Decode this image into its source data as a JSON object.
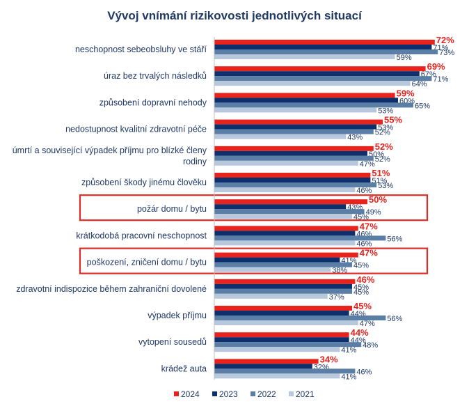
{
  "chart_data": {
    "type": "bar",
    "orientation": "horizontal",
    "title": "Vývoj vnímání rizikovosti jednotlivých situací",
    "xlim": [
      0,
      100
    ],
    "value_suffix": "%",
    "grid": false,
    "legend_position": "bottom",
    "categories": [
      [
        "neschopnost sebeobsluhy ve stáří"
      ],
      [
        "úraz bez trvalých následků"
      ],
      [
        "způsobení dopravní nehody"
      ],
      [
        "nedostupnost kvalitní zdravotní péče"
      ],
      [
        "úmrtí a související výpadek příjmu pro blízké členy",
        "rodiny"
      ],
      [
        "způsobení škody jinému člověku"
      ],
      [
        "požár domu / bytu"
      ],
      [
        "krátkodobá pracovní neschopnost"
      ],
      [
        "poškození, zničení domu / bytu"
      ],
      [
        "zdravotní indispozice během zahraniční dovolené"
      ],
      [
        "výpadek příjmu"
      ],
      [
        "vytopení sousedů"
      ],
      [
        "krádež auta"
      ]
    ],
    "highlighted_categories": [
      6,
      8
    ],
    "series": [
      {
        "name": "2024",
        "color": "#e8231e",
        "values": [
          72,
          69,
          59,
          55,
          52,
          51,
          50,
          47,
          47,
          46,
          45,
          44,
          34
        ]
      },
      {
        "name": "2023",
        "color": "#0d2f6b",
        "values": [
          71,
          67,
          60,
          53,
          50,
          51,
          43,
          46,
          41,
          45,
          44,
          44,
          32
        ]
      },
      {
        "name": "2022",
        "color": "#5b7ea6",
        "values": [
          73,
          71,
          65,
          52,
          52,
          53,
          49,
          56,
          45,
          45,
          56,
          48,
          46
        ]
      },
      {
        "name": "2021",
        "color": "#b7c8dc",
        "values": [
          59,
          64,
          53,
          43,
          47,
          46,
          45,
          46,
          38,
          37,
          47,
          41,
          41
        ]
      }
    ]
  }
}
